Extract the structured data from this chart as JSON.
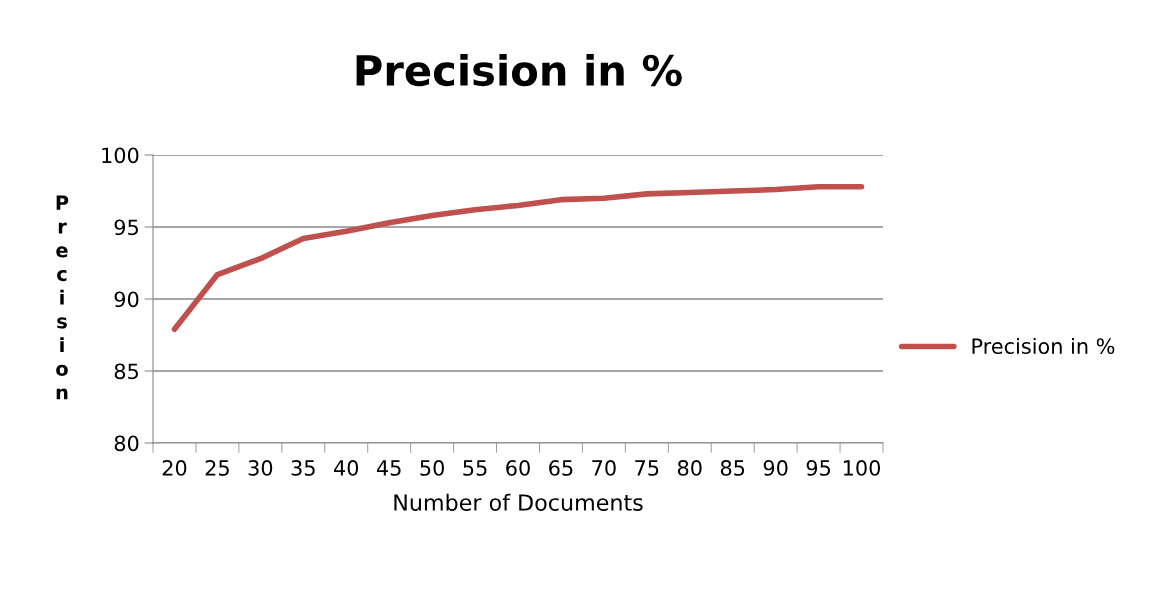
{
  "chart_data": {
    "type": "line",
    "title": "Precision in %",
    "xlabel": "Number of Documents",
    "ylabel": "Precision",
    "categories": [
      "20",
      "25",
      "30",
      "35",
      "40",
      "45",
      "50",
      "55",
      "60",
      "65",
      "70",
      "75",
      "80",
      "85",
      "90",
      "95",
      "100"
    ],
    "series": [
      {
        "name": "Precision in %",
        "color": "#c0504d",
        "values": [
          87.9,
          91.7,
          92.8,
          94.2,
          94.7,
          95.3,
          95.8,
          96.2,
          96.5,
          96.9,
          97.0,
          97.3,
          97.4,
          97.5,
          97.6,
          97.8,
          97.8
        ]
      }
    ],
    "ylim": [
      80,
      100
    ],
    "yticks": [
      80,
      85,
      90,
      95,
      100
    ],
    "grid": "y",
    "legend": "right"
  }
}
